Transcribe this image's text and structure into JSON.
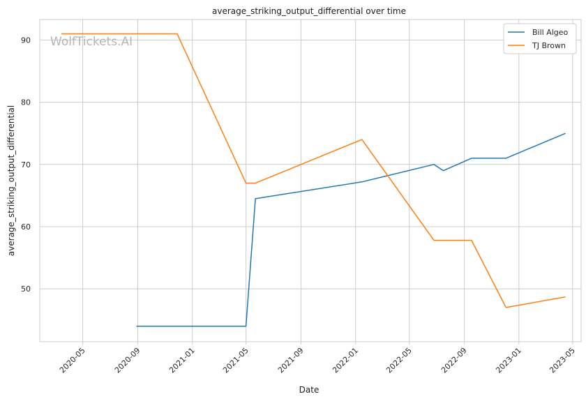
{
  "chart_data": {
    "type": "line",
    "title": "average_striking_output_differential over time",
    "xlabel": "Date",
    "ylabel": "average_striking_output_differential",
    "watermark": "WolfTickets.AI",
    "x_ticks": [
      "2020-05",
      "2020-09",
      "2021-01",
      "2021-05",
      "2021-09",
      "2022-01",
      "2022-05",
      "2022-09",
      "2023-01",
      "2023-05"
    ],
    "y_ticks": [
      50,
      60,
      70,
      80,
      90
    ],
    "xlim": [
      "2020-01-26",
      "2023-05-20"
    ],
    "ylim": [
      41.5,
      93.3
    ],
    "grid": true,
    "legend_position": "top-right",
    "series": [
      {
        "name": "Bill Algeo",
        "color": "#1f77b4",
        "points": [
          {
            "x": "2020-08-29",
            "y": 44.0
          },
          {
            "x": "2021-05-01",
            "y": 44.0
          },
          {
            "x": "2021-05-22",
            "y": 64.5
          },
          {
            "x": "2022-01-15",
            "y": 67.2
          },
          {
            "x": "2022-06-25",
            "y": 70.0
          },
          {
            "x": "2022-07-16",
            "y": 69.0
          },
          {
            "x": "2022-09-17",
            "y": 71.0
          },
          {
            "x": "2022-12-03",
            "y": 71.0
          },
          {
            "x": "2023-04-15",
            "y": 75.0
          }
        ]
      },
      {
        "name": "TJ Brown",
        "color": "#ff7f0e",
        "points": [
          {
            "x": "2020-03-14",
            "y": 91.0
          },
          {
            "x": "2020-11-28",
            "y": 91.0
          },
          {
            "x": "2021-05-01",
            "y": 67.0
          },
          {
            "x": "2021-05-22",
            "y": 67.0
          },
          {
            "x": "2022-01-15",
            "y": 74.0
          },
          {
            "x": "2022-06-25",
            "y": 57.8
          },
          {
            "x": "2022-09-17",
            "y": 57.8
          },
          {
            "x": "2022-12-03",
            "y": 47.0
          },
          {
            "x": "2023-04-15",
            "y": 48.7
          }
        ]
      }
    ]
  }
}
